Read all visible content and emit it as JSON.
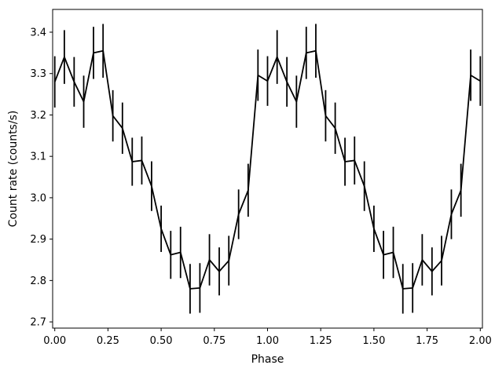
{
  "chart_data": {
    "type": "line",
    "title": "",
    "xlabel": "Phase",
    "ylabel": "Count rate (counts/s)",
    "xlim": [
      -0.01,
      2.01
    ],
    "ylim": [
      2.685,
      3.455
    ],
    "xticks": [
      0.0,
      0.25,
      0.5,
      0.75,
      1.0,
      1.25,
      1.5,
      1.75,
      2.0
    ],
    "xtick_labels": [
      "0.00",
      "0.25",
      "0.50",
      "0.75",
      "1.00",
      "1.25",
      "1.50",
      "1.75",
      "2.00"
    ],
    "yticks": [
      2.7,
      2.8,
      2.9,
      3.0,
      3.1,
      3.2,
      3.3,
      3.4
    ],
    "ytick_labels": [
      "2.7",
      "2.8",
      "2.9",
      "3.0",
      "3.1",
      "3.2",
      "3.3",
      "3.4"
    ],
    "grid": false,
    "line_color": "#000000",
    "series": [
      {
        "x": [
          0.0,
          0.045,
          0.091,
          0.136,
          0.182,
          0.227,
          0.273,
          0.318,
          0.364,
          0.409,
          0.455,
          0.5,
          0.545,
          0.591,
          0.636,
          0.682,
          0.727,
          0.773,
          0.818,
          0.864,
          0.909,
          0.955,
          1.0,
          1.045,
          1.091,
          1.136,
          1.182,
          1.227,
          1.273,
          1.318,
          1.364,
          1.409,
          1.455,
          1.5,
          1.545,
          1.591,
          1.636,
          1.682,
          1.727,
          1.773,
          1.818,
          1.864,
          1.909,
          1.955,
          2.0
        ],
        "y": [
          3.28,
          3.34,
          3.28,
          3.232,
          3.35,
          3.355,
          3.198,
          3.168,
          3.087,
          3.09,
          3.028,
          2.925,
          2.862,
          2.868,
          2.78,
          2.782,
          2.85,
          2.822,
          2.848,
          2.96,
          3.018,
          3.296,
          3.282,
          3.34,
          3.28,
          3.232,
          3.35,
          3.355,
          3.198,
          3.168,
          3.087,
          3.09,
          3.028,
          2.925,
          2.862,
          2.868,
          2.78,
          2.782,
          2.85,
          2.822,
          2.848,
          2.96,
          3.018,
          3.296,
          3.282
        ],
        "yerr": [
          0.062,
          0.065,
          0.06,
          0.063,
          0.063,
          0.065,
          0.062,
          0.062,
          0.058,
          0.058,
          0.06,
          0.056,
          0.058,
          0.062,
          0.06,
          0.06,
          0.062,
          0.058,
          0.06,
          0.06,
          0.064,
          0.062,
          0.06,
          0.065,
          0.06,
          0.063,
          0.063,
          0.065,
          0.062,
          0.062,
          0.058,
          0.058,
          0.06,
          0.056,
          0.058,
          0.062,
          0.06,
          0.06,
          0.062,
          0.058,
          0.06,
          0.06,
          0.064,
          0.062,
          0.06
        ]
      }
    ]
  }
}
